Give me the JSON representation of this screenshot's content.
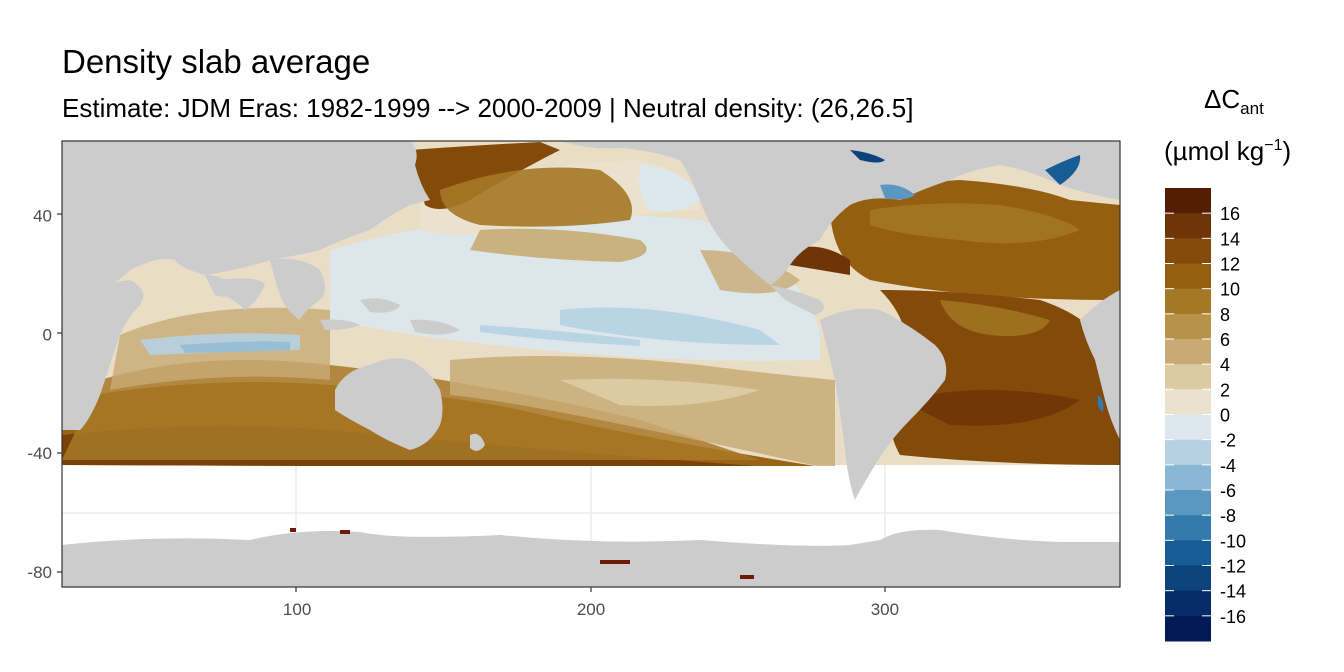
{
  "title": "Density slab average",
  "subtitle": "Estimate: JDM Eras: 1982-1999 --> 2000-2009 | Neutral density: (26,26.5]",
  "legend": {
    "title_main": "ΔC",
    "title_sub": "ant",
    "units_prefix": "(µmol kg",
    "units_sup": "−1",
    "units_suffix": ")",
    "bins": [
      {
        "color": "#541e05"
      },
      {
        "color": "#6e3607"
      },
      {
        "color": "#834a09"
      },
      {
        "color": "#955f12"
      },
      {
        "color": "#a57826"
      },
      {
        "color": "#b79248"
      },
      {
        "color": "#c8ab74"
      },
      {
        "color": "#dccaa2"
      },
      {
        "color": "#ebe2cd"
      },
      {
        "color": "#dce7ee"
      },
      {
        "color": "#b5d1e2"
      },
      {
        "color": "#8ab7d4"
      },
      {
        "color": "#5b98c1"
      },
      {
        "color": "#347aac"
      },
      {
        "color": "#185c95"
      },
      {
        "color": "#0c437d"
      },
      {
        "color": "#062c68"
      },
      {
        "color": "#031a57"
      }
    ],
    "labels": [
      "16",
      "14",
      "12",
      "10",
      "8",
      "6",
      "4",
      "2",
      "0",
      "-2",
      "-4",
      "-6",
      "-8",
      "-10",
      "-12",
      "-14",
      "-16"
    ]
  },
  "chart_data": {
    "type": "heatmap",
    "title": "Density slab average",
    "subtitle": "Estimate: JDM Eras: 1982-1999 --> 2000-2009 | Neutral density: (26,26.5]",
    "xlabel": "",
    "ylabel": "",
    "x_ticks": [
      100,
      200,
      300
    ],
    "y_ticks": [
      40,
      0,
      -40,
      -80
    ],
    "xlim": [
      20,
      380
    ],
    "ylim": [
      -85,
      65
    ],
    "grid": true,
    "legend_position": "right",
    "land_color": "#cccccc",
    "nodata_color": "#ffffff",
    "variable": "ΔCant (µmol kg−1)"
  }
}
